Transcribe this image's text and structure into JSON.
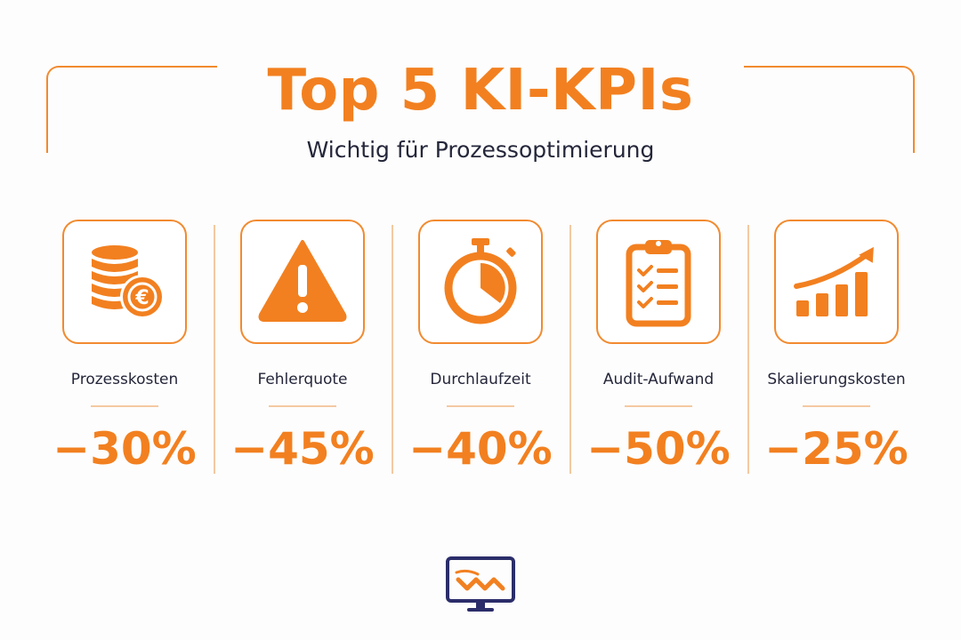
{
  "header": {
    "title": "Top 5 KI-KPIs",
    "subtitle": "Wichtig für Prozessoptimierung"
  },
  "colors": {
    "accent": "#f28020",
    "text": "#24263a",
    "logo": "#2b2d6a"
  },
  "kpis": [
    {
      "label": "Prozesskosten",
      "value": "−30%",
      "icon": "coins-euro-icon"
    },
    {
      "label": "Fehlerquote",
      "value": "−45%",
      "icon": "warning-icon"
    },
    {
      "label": "Durchlaufzeit",
      "value": "−40%",
      "icon": "stopwatch-icon"
    },
    {
      "label": "Audit-Aufwand",
      "value": "−50%",
      "icon": "clipboard-checklist-icon"
    },
    {
      "label": "Skalierungskosten",
      "value": "−25%",
      "icon": "growth-chart-icon"
    }
  ],
  "footer": {
    "logo_icon": "monitor-logo-icon"
  }
}
